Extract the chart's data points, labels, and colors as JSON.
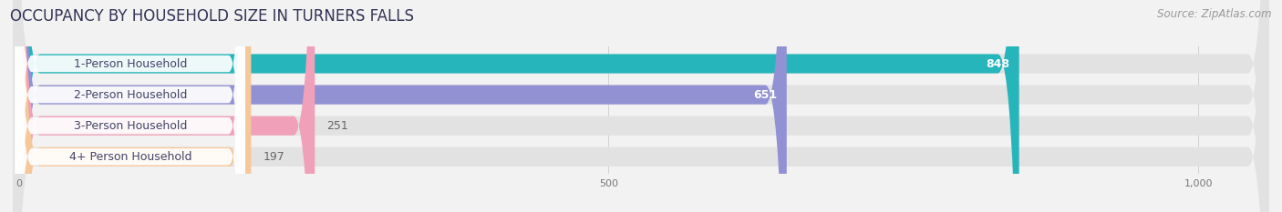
{
  "title": "OCCUPANCY BY HOUSEHOLD SIZE IN TURNERS FALLS",
  "source": "Source: ZipAtlas.com",
  "categories": [
    "1-Person Household",
    "2-Person Household",
    "3-Person Household",
    "4+ Person Household"
  ],
  "values": [
    848,
    651,
    251,
    197
  ],
  "bar_colors": [
    "#26b5ba",
    "#9191d4",
    "#f0a0b8",
    "#f5c89a"
  ],
  "label_colors": [
    "#ffffff",
    "#ffffff",
    "#666666",
    "#666666"
  ],
  "background_color": "#f2f2f2",
  "bar_bg_color": "#e2e2e2",
  "pill_bg_color": "#ffffff",
  "pill_text_color": "#444466",
  "xlim_min": -5,
  "xlim_max": 1060,
  "xticks": [
    0,
    500,
    1000
  ],
  "xticklabels": [
    "0",
    "500",
    "1,000"
  ],
  "title_color": "#333355",
  "title_fontsize": 12,
  "source_fontsize": 8.5,
  "cat_fontsize": 9,
  "value_fontsize": 9,
  "bar_height": 0.62,
  "bar_gap": 0.38
}
